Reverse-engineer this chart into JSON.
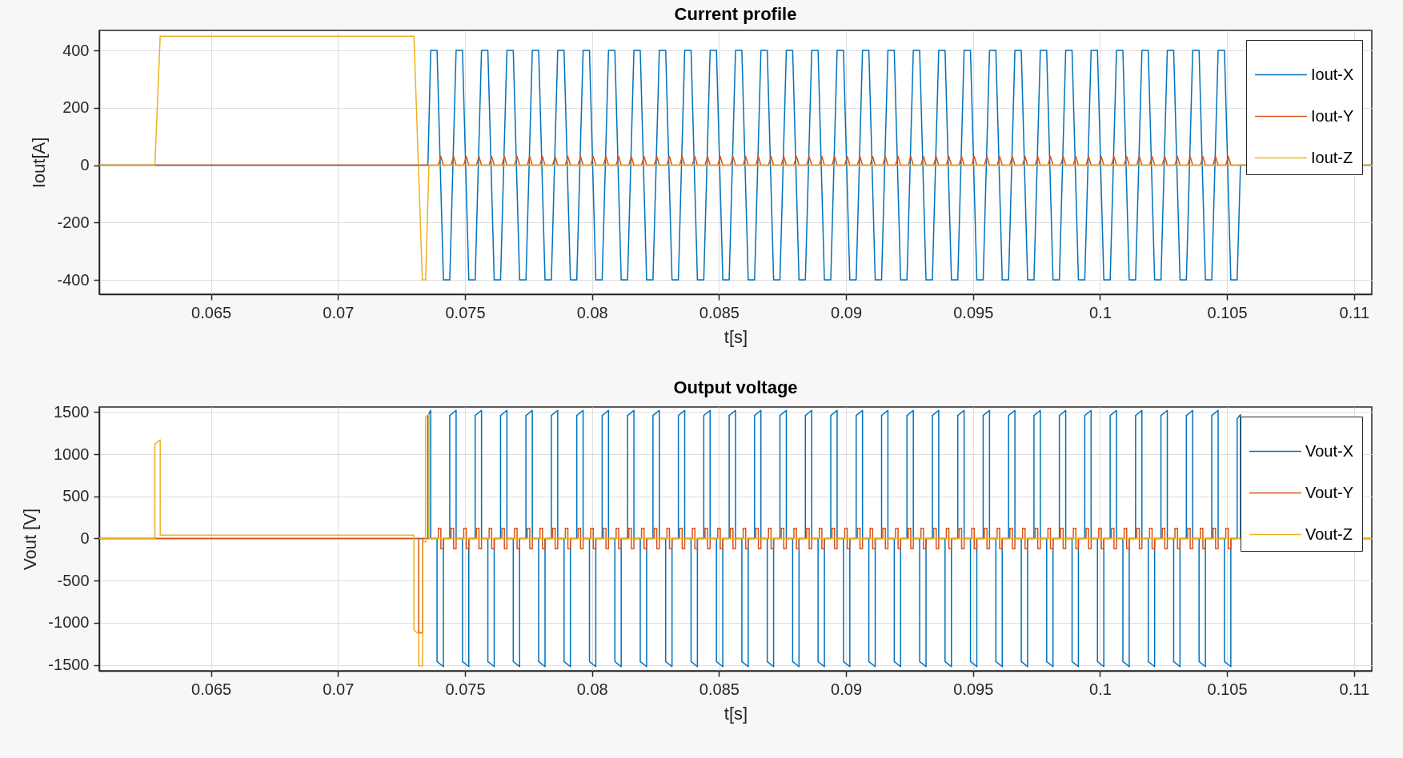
{
  "chart_data": [
    {
      "type": "line",
      "title": "Current profile",
      "xlabel": "t[s]",
      "ylabel": "Iout[A]",
      "xlim": [
        0.0606,
        0.1107
      ],
      "xticks": [
        0.065,
        0.07,
        0.075,
        0.08,
        0.085,
        0.09,
        0.095,
        0.1,
        0.105,
        0.11
      ],
      "ylim": [
        -450,
        470
      ],
      "yticks": [
        -400,
        -200,
        0,
        200,
        400
      ],
      "grid": true,
      "legend": "top right",
      "series": [
        {
          "name": "Iout-X",
          "color": "#0072bd",
          "x": [
            0.0606,
            0.07354,
            0.07365,
            0.0739,
            0.07415,
            0.0744,
            0.07465,
            0.0749,
            0.07515,
            0.0754,
            0.07565,
            0.0759,
            0.07615,
            0.0764,
            0.07665,
            0.0769,
            0.07715,
            0.0774,
            0.07765,
            0.0779,
            0.07815,
            0.0784,
            0.07865,
            0.0789,
            0.07915,
            0.0794,
            0.07965,
            0.0799,
            0.08015,
            0.0804,
            0.08065,
            0.0809,
            0.08115,
            0.0814,
            0.08165,
            0.0819,
            0.08215,
            0.0824,
            0.08265,
            0.0829,
            0.08315,
            0.0834,
            0.08365,
            0.0839,
            0.08415,
            0.0844,
            0.08465,
            0.0849,
            0.08515,
            0.0854,
            0.08565,
            0.0859,
            0.08615,
            0.0864,
            0.08665,
            0.0869,
            0.08715,
            0.0874,
            0.08765,
            0.0879,
            0.08815,
            0.0884,
            0.08865,
            0.0889,
            0.08915,
            0.0894,
            0.08965,
            0.0899,
            0.09015,
            0.0904,
            0.09065,
            0.0909,
            0.09115,
            0.0914,
            0.09165,
            0.0919,
            0.09215,
            0.0924,
            0.09265,
            0.0929,
            0.09315,
            0.0934,
            0.09365,
            0.0939,
            0.09415,
            0.0944,
            0.09465,
            0.0949,
            0.09515,
            0.0954,
            0.09565,
            0.0959,
            0.09615,
            0.0964,
            0.09665,
            0.0969,
            0.09715,
            0.0974,
            0.09765,
            0.0979,
            0.09815,
            0.0984,
            0.09865,
            0.0989,
            0.09915,
            0.0994,
            0.09965,
            0.0999,
            0.10015,
            0.1004,
            0.10065,
            0.1009,
            0.10115,
            0.1014,
            0.10165,
            0.1019,
            0.10215,
            0.1024,
            0.10265,
            0.1029,
            0.10315,
            0.1034,
            0.10365,
            0.1039,
            0.10415,
            0.1044,
            0.10465,
            0.1049,
            0.10515,
            0.1054,
            0.10553,
            0.1107
          ],
          "values": [
            0,
            0,
            400,
            400,
            -400,
            -400,
            400,
            400,
            -400,
            -400,
            400,
            400,
            -400,
            -400,
            400,
            400,
            -400,
            -400,
            400,
            400,
            -400,
            -400,
            400,
            400,
            -400,
            -400,
            400,
            400,
            -400,
            -400,
            400,
            400,
            -400,
            -400,
            400,
            400,
            -400,
            -400,
            400,
            400,
            -400,
            -400,
            400,
            400,
            -400,
            -400,
            400,
            400,
            -400,
            -400,
            400,
            400,
            -400,
            -400,
            400,
            400,
            -400,
            -400,
            400,
            400,
            -400,
            -400,
            400,
            400,
            -400,
            -400,
            400,
            400,
            -400,
            -400,
            400,
            400,
            -400,
            -400,
            400,
            400,
            -400,
            -400,
            400,
            400,
            -400,
            -400,
            400,
            400,
            -400,
            -400,
            400,
            400,
            -400,
            -400,
            400,
            400,
            -400,
            -400,
            400,
            400,
            -400,
            -400,
            400,
            400,
            -400,
            -400,
            400,
            400,
            -400,
            -400,
            400,
            400,
            -400,
            -400,
            400,
            400,
            -400,
            -400,
            400,
            400,
            -400,
            -400,
            400,
            400,
            -400,
            -400,
            400,
            400,
            -400,
            -400,
            400,
            400,
            -400,
            -400,
            0,
            0
          ]
        },
        {
          "name": "Iout-Y",
          "color": "#d95319",
          "x": [
            0.0606,
            0.07395,
            0.07405,
            0.07415,
            0.07445,
            0.07455,
            0.07465,
            0.07495,
            0.07505,
            0.07515,
            0.07545,
            0.07555,
            0.07565,
            0.07595,
            0.07605,
            0.07615,
            0.07645,
            0.07655,
            0.07665,
            0.07695,
            0.07705,
            0.07715,
            0.07745,
            0.07755,
            0.07765,
            0.07795,
            0.07805,
            0.07815,
            0.07845,
            0.07855,
            0.07865,
            0.07895,
            0.07905,
            0.07915,
            0.07945,
            0.07955,
            0.07965,
            0.07995,
            0.08005,
            0.08015,
            0.08045,
            0.08055,
            0.08065,
            0.08095,
            0.08105,
            0.08115,
            0.08145,
            0.08155,
            0.08165,
            0.08195,
            0.08205,
            0.08215,
            0.08245,
            0.08255,
            0.08265,
            0.08295,
            0.08305,
            0.08315,
            0.08345,
            0.08355,
            0.08365,
            0.08395,
            0.08405,
            0.08415,
            0.08445,
            0.08455,
            0.08465,
            0.08495,
            0.08505,
            0.08515,
            0.08545,
            0.08555,
            0.08565,
            0.08595,
            0.08605,
            0.08615,
            0.08645,
            0.08655,
            0.08665,
            0.08695,
            0.08705,
            0.08715,
            0.08745,
            0.08755,
            0.08765,
            0.08795,
            0.08805,
            0.08815,
            0.08845,
            0.08855,
            0.08865,
            0.08895,
            0.08905,
            0.08915,
            0.08945,
            0.08955,
            0.08965,
            0.08995,
            0.09005,
            0.09015,
            0.09045,
            0.09055,
            0.09065,
            0.09095,
            0.09105,
            0.09115,
            0.09145,
            0.09155,
            0.09165,
            0.09195,
            0.09205,
            0.09215,
            0.09245,
            0.09255,
            0.09265,
            0.09295,
            0.09305,
            0.09315,
            0.09345,
            0.09355,
            0.09365,
            0.09395,
            0.09405,
            0.09415,
            0.09445,
            0.09455,
            0.09465,
            0.09495,
            0.09505,
            0.09515,
            0.09545,
            0.09555,
            0.09565,
            0.09595,
            0.09605,
            0.09615,
            0.09645,
            0.09655,
            0.09665,
            0.09695,
            0.09705,
            0.09715,
            0.09745,
            0.09755,
            0.09765,
            0.09795,
            0.09805,
            0.09815,
            0.09845,
            0.09855,
            0.09865,
            0.09895,
            0.09905,
            0.09915,
            0.09945,
            0.09955,
            0.09965,
            0.09995,
            0.10005,
            0.10015,
            0.10045,
            0.10055,
            0.10065,
            0.10095,
            0.10105,
            0.10115,
            0.10145,
            0.10155,
            0.10165,
            0.10195,
            0.10205,
            0.10215,
            0.10245,
            0.10255,
            0.10265,
            0.10295,
            0.10305,
            0.10315,
            0.10345,
            0.10355,
            0.10365,
            0.10395,
            0.10405,
            0.10415,
            0.10445,
            0.10455,
            0.10465,
            0.10495,
            0.10505,
            0.10515,
            0.1107
          ],
          "values": [
            0,
            0,
            30,
            0,
            0,
            30,
            0,
            0,
            30,
            0,
            0,
            30,
            0,
            0,
            30,
            0,
            0,
            30,
            0,
            0,
            30,
            0,
            0,
            30,
            0,
            0,
            30,
            0,
            0,
            30,
            0,
            0,
            30,
            0,
            0,
            30,
            0,
            0,
            30,
            0,
            0,
            30,
            0,
            0,
            30,
            0,
            0,
            30,
            0,
            0,
            30,
            0,
            0,
            30,
            0,
            0,
            30,
            0,
            0,
            30,
            0,
            0,
            30,
            0,
            0,
            30,
            0,
            0,
            30,
            0,
            0,
            30,
            0,
            0,
            30,
            0,
            0,
            30,
            0,
            0,
            30,
            0,
            0,
            30,
            0,
            0,
            30,
            0,
            0,
            30,
            0,
            0,
            30,
            0,
            0,
            30,
            0,
            0,
            30,
            0,
            0,
            30,
            0,
            0,
            30,
            0,
            0,
            30,
            0,
            0,
            30,
            0,
            0,
            30,
            0,
            0,
            30,
            0,
            0,
            30,
            0,
            0,
            30,
            0,
            0,
            30,
            0,
            0,
            30,
            0,
            0,
            30,
            0,
            0,
            30,
            0,
            0,
            30,
            0,
            0,
            30,
            0,
            0,
            30,
            0,
            0,
            30,
            0,
            0,
            30,
            0,
            0,
            30,
            0,
            0,
            30,
            0,
            0,
            30,
            0,
            0,
            30,
            0,
            0,
            30,
            0,
            0,
            30,
            0,
            0,
            30,
            0,
            0,
            30,
            0,
            0,
            30,
            0,
            0,
            30,
            0,
            0,
            30,
            0,
            0,
            30,
            0,
            0,
            30,
            0,
            0
          ]
        },
        {
          "name": "Iout-Z",
          "color": "#edb120",
          "x": [
            0.0606,
            0.06279,
            0.063,
            0.07299,
            0.07332,
            0.07345,
            0.07358,
            0.1107
          ],
          "values": [
            0,
            0,
            450,
            450,
            -400,
            -400,
            0,
            0
          ]
        }
      ]
    },
    {
      "type": "line",
      "title": "Output voltage",
      "xlabel": "t[s]",
      "ylabel": "Vout [V]",
      "xlim": [
        0.0606,
        0.1107
      ],
      "xticks": [
        0.065,
        0.07,
        0.075,
        0.08,
        0.085,
        0.09,
        0.095,
        0.1,
        0.105,
        0.11
      ],
      "ylim": [
        -1570,
        1560
      ],
      "yticks": [
        -1500,
        -1000,
        -500,
        0,
        500,
        1000,
        1500
      ],
      "grid": true,
      "legend": "top right",
      "series": [
        {
          "name": "Vout-X",
          "color": "#0072bd",
          "x": [
            0.0606,
            0.07354,
            0.07354,
            0.07365,
            0.07365,
            0.0739,
            0.0739,
            0.07415,
            0.07415,
            0.0744,
            0.0744,
            0.07465,
            0.07465,
            0.0749,
            0.0749,
            0.07515,
            0.07515,
            0.0754,
            0.0754,
            0.07565,
            0.07565,
            0.0759,
            0.0759,
            0.07615,
            0.07615,
            0.0764,
            0.0764,
            0.07665,
            0.07665,
            0.0769,
            0.0769,
            0.07715,
            0.07715,
            0.0774,
            0.0774,
            0.07765,
            0.07765,
            0.0779,
            0.0779,
            0.07815,
            0.07815,
            0.0784,
            0.0784,
            0.07865,
            0.07865,
            0.0789,
            0.0789,
            0.07915,
            0.07915,
            0.0794,
            0.0794,
            0.07965,
            0.07965,
            0.0799,
            0.0799,
            0.08015,
            0.08015,
            0.0804,
            0.0804,
            0.08065,
            0.08065,
            0.0809,
            0.0809,
            0.08115,
            0.08115,
            0.0814,
            0.0814,
            0.08165,
            0.08165,
            0.0819,
            0.0819,
            0.08215,
            0.08215,
            0.0824,
            0.0824,
            0.08265,
            0.08265,
            0.0829,
            0.0829,
            0.08315,
            0.08315,
            0.0834,
            0.0834,
            0.08365,
            0.08365,
            0.0839,
            0.0839,
            0.08415,
            0.08415,
            0.0844,
            0.0844,
            0.08465,
            0.08465,
            0.0849,
            0.0849,
            0.08515,
            0.08515,
            0.0854,
            0.0854,
            0.08565,
            0.08565,
            0.0859,
            0.0859,
            0.08615,
            0.08615,
            0.0864,
            0.0864,
            0.08665,
            0.08665,
            0.0869,
            0.0869,
            0.08715,
            0.08715,
            0.0874,
            0.0874,
            0.08765,
            0.08765,
            0.0879,
            0.0879,
            0.08815,
            0.08815,
            0.0884,
            0.0884,
            0.08865,
            0.08865,
            0.0889,
            0.0889,
            0.08915,
            0.08915,
            0.0894,
            0.0894,
            0.08965,
            0.08965,
            0.0899,
            0.0899,
            0.09015,
            0.09015,
            0.0904,
            0.0904,
            0.09065,
            0.09065,
            0.0909,
            0.0909,
            0.09115,
            0.09115,
            0.0914,
            0.0914,
            0.09165,
            0.09165,
            0.0919,
            0.0919,
            0.09215,
            0.09215,
            0.0924,
            0.0924,
            0.09265,
            0.09265,
            0.0929,
            0.0929,
            0.09315,
            0.09315,
            0.0934,
            0.0934,
            0.09365,
            0.09365,
            0.0939,
            0.0939,
            0.09415,
            0.09415,
            0.0944,
            0.0944,
            0.09465,
            0.09465,
            0.0949,
            0.0949,
            0.09515,
            0.09515,
            0.0954,
            0.0954,
            0.09565,
            0.09565,
            0.0959,
            0.0959,
            0.09615,
            0.09615,
            0.0964,
            0.0964,
            0.09665,
            0.09665,
            0.0969,
            0.0969,
            0.09715,
            0.09715,
            0.0974,
            0.0974,
            0.09765,
            0.09765,
            0.0979,
            0.0979,
            0.09815,
            0.09815,
            0.0984,
            0.0984,
            0.09865,
            0.09865,
            0.0989,
            0.0989,
            0.09915,
            0.09915,
            0.0994,
            0.0994,
            0.09965,
            0.09965,
            0.0999,
            0.0999,
            0.10015,
            0.10015,
            0.1004,
            0.1004,
            0.10065,
            0.10065,
            0.1009,
            0.1009,
            0.10115,
            0.10115,
            0.1014,
            0.1014,
            0.10165,
            0.10165,
            0.1019,
            0.1019,
            0.10215,
            0.10215,
            0.1024,
            0.1024,
            0.10265,
            0.10265,
            0.1029,
            0.1029,
            0.10315,
            0.10315,
            0.1034,
            0.1034,
            0.10365,
            0.10365,
            0.1039,
            0.1039,
            0.10415,
            0.10415,
            0.1044,
            0.1044,
            0.10465,
            0.10465,
            0.1049,
            0.1049,
            0.10515,
            0.10515,
            0.1054,
            0.1054,
            0.10553,
            0.10553,
            0.1107
          ],
          "values": [
            0,
            0,
            1460,
            1520,
            0,
            0,
            -1460,
            -1520,
            0,
            0,
            1460,
            1520,
            0,
            0,
            -1460,
            -1520,
            0,
            0,
            1460,
            1520,
            0,
            0,
            -1460,
            -1520,
            0,
            0,
            1460,
            1520,
            0,
            0,
            -1460,
            -1520,
            0,
            0,
            1460,
            1520,
            0,
            0,
            -1460,
            -1520,
            0,
            0,
            1460,
            1520,
            0,
            0,
            -1460,
            -1520,
            0,
            0,
            1460,
            1520,
            0,
            0,
            -1460,
            -1520,
            0,
            0,
            1460,
            1520,
            0,
            0,
            -1460,
            -1520,
            0,
            0,
            1460,
            1520,
            0,
            0,
            -1460,
            -1520,
            0,
            0,
            1460,
            1520,
            0,
            0,
            -1460,
            -1520,
            0,
            0,
            1460,
            1520,
            0,
            0,
            -1460,
            -1520,
            0,
            0,
            1460,
            1520,
            0,
            0,
            -1460,
            -1520,
            0,
            0,
            1460,
            1520,
            0,
            0,
            -1460,
            -1520,
            0,
            0,
            1460,
            1520,
            0,
            0,
            -1460,
            -1520,
            0,
            0,
            1460,
            1520,
            0,
            0,
            -1460,
            -1520,
            0,
            0,
            1460,
            1520,
            0,
            0,
            -1460,
            -1520,
            0,
            0,
            1460,
            1520,
            0,
            0,
            -1460,
            -1520,
            0,
            0,
            1460,
            1520,
            0,
            0,
            -1460,
            -1520,
            0,
            0,
            1460,
            1520,
            0,
            0,
            -1460,
            -1520,
            0,
            0,
            1460,
            1520,
            0,
            0,
            -1460,
            -1520,
            0,
            0,
            1460,
            1520,
            0,
            0,
            -1460,
            -1520,
            0,
            0,
            1460,
            1520,
            0,
            0,
            -1460,
            -1520,
            0,
            0,
            1460,
            1520,
            0,
            0,
            -1460,
            -1520,
            0,
            0,
            1460,
            1520,
            0,
            0,
            -1460,
            -1520,
            0,
            0,
            1460,
            1520,
            0,
            0,
            -1460,
            -1520,
            0,
            0,
            1460,
            1520,
            0,
            0,
            -1460,
            -1520,
            0,
            0,
            1460,
            1520,
            0,
            0,
            -1460,
            -1520,
            0,
            0,
            1460,
            1520,
            0,
            0,
            -1460,
            -1520,
            0,
            0,
            1460,
            1520,
            0,
            0,
            -1460,
            -1520,
            0,
            0,
            1460,
            1520,
            0,
            0,
            -1460,
            -1520,
            0,
            0,
            1460,
            1520,
            0,
            0,
            -1460,
            -1520,
            0,
            0,
            1460,
            1520,
            0,
            0,
            -1460,
            -1520,
            0,
            0,
            1420,
            1470,
            0,
            0
          ]
        },
        {
          "name": "Vout-Y",
          "color": "#d95319",
          "x": [
            0.0606,
            0.07318,
            0.07318,
            0.07333,
            0.07333,
            0.07395,
            0.07395,
            0.07405,
            0.07405,
            0.07415,
            0.07415,
            0.07445,
            0.07445,
            0.07455,
            0.07455,
            0.07465,
            0.07465,
            0.07495,
            0.07495,
            0.07505,
            0.07505,
            0.07515,
            0.07515,
            0.07545,
            0.07545,
            0.07555,
            0.07555,
            0.07565,
            0.07565,
            0.07595,
            0.07595,
            0.07605,
            0.07605,
            0.07615,
            0.07615,
            0.07645,
            0.07645,
            0.07655,
            0.07655,
            0.07665,
            0.07665,
            0.07695,
            0.07695,
            0.07705,
            0.07705,
            0.07715,
            0.07715,
            0.07745,
            0.07745,
            0.07755,
            0.07755,
            0.07765,
            0.07765,
            0.07795,
            0.07795,
            0.07805,
            0.07805,
            0.07815,
            0.07815,
            0.07845,
            0.07845,
            0.07855,
            0.07855,
            0.07865,
            0.07865,
            0.07895,
            0.07895,
            0.07905,
            0.07905,
            0.07915,
            0.07915,
            0.07945,
            0.07945,
            0.07955,
            0.07955,
            0.07965,
            0.07965,
            0.07995,
            0.07995,
            0.08005,
            0.08005,
            0.08015,
            0.08015,
            0.08045,
            0.08045,
            0.08055,
            0.08055,
            0.08065,
            0.08065,
            0.08095,
            0.08095,
            0.08105,
            0.08105,
            0.08115,
            0.08115,
            0.08145,
            0.08145,
            0.08155,
            0.08155,
            0.08165,
            0.08165,
            0.08195,
            0.08195,
            0.08205,
            0.08205,
            0.08215,
            0.08215,
            0.08245,
            0.08245,
            0.08255,
            0.08255,
            0.08265,
            0.08265,
            0.08295,
            0.08295,
            0.08305,
            0.08305,
            0.08315,
            0.08315,
            0.08345,
            0.08345,
            0.08355,
            0.08355,
            0.08365,
            0.08365,
            0.08395,
            0.08395,
            0.08405,
            0.08405,
            0.08415,
            0.08415,
            0.08445,
            0.08445,
            0.08455,
            0.08455,
            0.08465,
            0.08465,
            0.08495,
            0.08495,
            0.08505,
            0.08505,
            0.08515,
            0.08515,
            0.08545,
            0.08545,
            0.08555,
            0.08555,
            0.08565,
            0.08565,
            0.08595,
            0.08595,
            0.08605,
            0.08605,
            0.08615,
            0.08615,
            0.08645,
            0.08645,
            0.08655,
            0.08655,
            0.08665,
            0.08665,
            0.08695,
            0.08695,
            0.08705,
            0.08705,
            0.08715,
            0.08715,
            0.08745,
            0.08745,
            0.08755,
            0.08755,
            0.08765,
            0.08765,
            0.08795,
            0.08795,
            0.08805,
            0.08805,
            0.08815,
            0.08815,
            0.08845,
            0.08845,
            0.08855,
            0.08855,
            0.08865,
            0.08865,
            0.08895,
            0.08895,
            0.08905,
            0.08905,
            0.08915,
            0.08915,
            0.08945,
            0.08945,
            0.08955,
            0.08955,
            0.08965,
            0.08965,
            0.08995,
            0.08995,
            0.09005,
            0.09005,
            0.09015,
            0.09015,
            0.09045,
            0.09045,
            0.09055,
            0.09055,
            0.09065,
            0.09065,
            0.09095,
            0.09095,
            0.09105,
            0.09105,
            0.09115,
            0.09115,
            0.09145,
            0.09145,
            0.09155,
            0.09155,
            0.09165,
            0.09165,
            0.09195,
            0.09195,
            0.09205,
            0.09205,
            0.09215,
            0.09215,
            0.09245,
            0.09245,
            0.09255,
            0.09255,
            0.09265,
            0.09265,
            0.09295,
            0.09295,
            0.09305,
            0.09305,
            0.09315,
            0.09315,
            0.09345,
            0.09345,
            0.09355,
            0.09355,
            0.09365,
            0.09365,
            0.09395,
            0.09395,
            0.09405,
            0.09405,
            0.09415,
            0.09415,
            0.09445,
            0.09445,
            0.09455,
            0.09455,
            0.09465,
            0.09465,
            0.09495,
            0.09495,
            0.09505,
            0.09505,
            0.09515,
            0.09515,
            0.09545,
            0.09545,
            0.09555,
            0.09555,
            0.09565,
            0.09565,
            0.09595,
            0.09595,
            0.09605,
            0.09605,
            0.09615,
            0.09615,
            0.09645,
            0.09645,
            0.09655,
            0.09655,
            0.09665,
            0.09665,
            0.09695,
            0.09695,
            0.09705,
            0.09705,
            0.09715,
            0.09715,
            0.09745,
            0.09745,
            0.09755,
            0.09755,
            0.09765,
            0.09765,
            0.09795,
            0.09795,
            0.09805,
            0.09805,
            0.09815,
            0.09815,
            0.09845,
            0.09845,
            0.09855,
            0.09855,
            0.09865,
            0.09865,
            0.09895,
            0.09895,
            0.09905,
            0.09905,
            0.09915,
            0.09915,
            0.09945,
            0.09945,
            0.09955,
            0.09955,
            0.09965,
            0.09965,
            0.09995,
            0.09995,
            0.10005,
            0.10005,
            0.10015,
            0.10015,
            0.10045,
            0.10045,
            0.10055,
            0.10055,
            0.10065,
            0.10065,
            0.10095,
            0.10095,
            0.10105,
            0.10105,
            0.10115,
            0.10115,
            0.10145,
            0.10145,
            0.10155,
            0.10155,
            0.10165,
            0.10165,
            0.10195,
            0.10195,
            0.10205,
            0.10205,
            0.10215,
            0.10215,
            0.10245,
            0.10245,
            0.10255,
            0.10255,
            0.10265,
            0.10265,
            0.10295,
            0.10295,
            0.10305,
            0.10305,
            0.10315,
            0.10315,
            0.10345,
            0.10345,
            0.10355,
            0.10355,
            0.10365,
            0.10365,
            0.10395,
            0.10395,
            0.10405,
            0.10405,
            0.10415,
            0.10415,
            0.10445,
            0.10445,
            0.10455,
            0.10455,
            0.10465,
            0.10465,
            0.10495,
            0.10495,
            0.10505,
            0.10505,
            0.10515,
            0.10515,
            0.1107
          ],
          "values": [
            0,
            0,
            -1120,
            -1120,
            0,
            0,
            120,
            120,
            -120,
            -120,
            0,
            0,
            120,
            120,
            -120,
            -120,
            0,
            0,
            120,
            120,
            -120,
            -120,
            0,
            0,
            120,
            120,
            -120,
            -120,
            0,
            0,
            120,
            120,
            -120,
            -120,
            0,
            0,
            120,
            120,
            -120,
            -120,
            0,
            0,
            120,
            120,
            -120,
            -120,
            0,
            0,
            120,
            120,
            -120,
            -120,
            0,
            0,
            120,
            120,
            -120,
            -120,
            0,
            0,
            120,
            120,
            -120,
            -120,
            0,
            0,
            120,
            120,
            -120,
            -120,
            0,
            0,
            120,
            120,
            -120,
            -120,
            0,
            0,
            120,
            120,
            -120,
            -120,
            0,
            0,
            120,
            120,
            -120,
            -120,
            0,
            0,
            120,
            120,
            -120,
            -120,
            0,
            0,
            120,
            120,
            -120,
            -120,
            0,
            0,
            120,
            120,
            -120,
            -120,
            0,
            0,
            120,
            120,
            -120,
            -120,
            0,
            0,
            120,
            120,
            -120,
            -120,
            0,
            0,
            120,
            120,
            -120,
            -120,
            0,
            0,
            120,
            120,
            -120,
            -120,
            0,
            0,
            120,
            120,
            -120,
            -120,
            0,
            0,
            120,
            120,
            -120,
            -120,
            0,
            0,
            120,
            120,
            -120,
            -120,
            0,
            0,
            120,
            120,
            -120,
            -120,
            0,
            0,
            120,
            120,
            -120,
            -120,
            0,
            0,
            120,
            120,
            -120,
            -120,
            0,
            0,
            120,
            120,
            -120,
            -120,
            0,
            0,
            120,
            120,
            -120,
            -120,
            0,
            0,
            120,
            120,
            -120,
            -120,
            0,
            0,
            120,
            120,
            -120,
            -120,
            0,
            0,
            120,
            120,
            -120,
            -120,
            0,
            0,
            120,
            120,
            -120,
            -120,
            0,
            0,
            120,
            120,
            -120,
            -120,
            0,
            0,
            120,
            120,
            -120,
            -120,
            0,
            0,
            120,
            120,
            -120,
            -120,
            0,
            0,
            120,
            120,
            -120,
            -120,
            0,
            0,
            120,
            120,
            -120,
            -120,
            0,
            0,
            120,
            120,
            -120,
            -120,
            0,
            0,
            120,
            120,
            -120,
            -120,
            0,
            0,
            120,
            120,
            -120,
            -120,
            0,
            0,
            120,
            120,
            -120,
            -120,
            0,
            0,
            120,
            120,
            -120,
            -120,
            0,
            0,
            120,
            120,
            -120,
            -120,
            0,
            0,
            120,
            120,
            -120,
            -120,
            0,
            0,
            120,
            120,
            -120,
            -120,
            0,
            0,
            120,
            120,
            -120,
            -120,
            0,
            0,
            120,
            120,
            -120,
            -120,
            0,
            0,
            120,
            120,
            -120,
            -120,
            0,
            0,
            120,
            120,
            -120,
            -120,
            0,
            0,
            120,
            120,
            -120,
            -120,
            0,
            0,
            120,
            120,
            -120,
            -120,
            0,
            0,
            120,
            120,
            -120,
            -120,
            0,
            0,
            120,
            120,
            -120,
            -120,
            0,
            0,
            120,
            120,
            -120,
            -120,
            0,
            0,
            120,
            120,
            -120,
            -120,
            0,
            0,
            120,
            120,
            -120,
            -120,
            0,
            0,
            120,
            120,
            -120,
            -120,
            0,
            0,
            120,
            120,
            -120,
            -120,
            0,
            0,
            120,
            120,
            -120,
            -120,
            0,
            0,
            120,
            120,
            -120,
            -120,
            0,
            0,
            120,
            120,
            -120,
            -120,
            0,
            0,
            120,
            120,
            -120,
            -120,
            0,
            0
          ]
        },
        {
          "name": "Vout-Z",
          "color": "#edb120",
          "x": [
            0.0606,
            0.06279,
            0.06279,
            0.063,
            0.063,
            0.07299,
            0.07299,
            0.07318,
            0.07318,
            0.07333,
            0.07333,
            0.07345,
            0.07345,
            0.07358,
            0.07358,
            0.1107
          ],
          "values": [
            0,
            0,
            1120,
            1170,
            40,
            40,
            -1090,
            -1130,
            -1510,
            -1510,
            -40,
            -40,
            1440,
            1480,
            0,
            0
          ]
        }
      ]
    }
  ]
}
